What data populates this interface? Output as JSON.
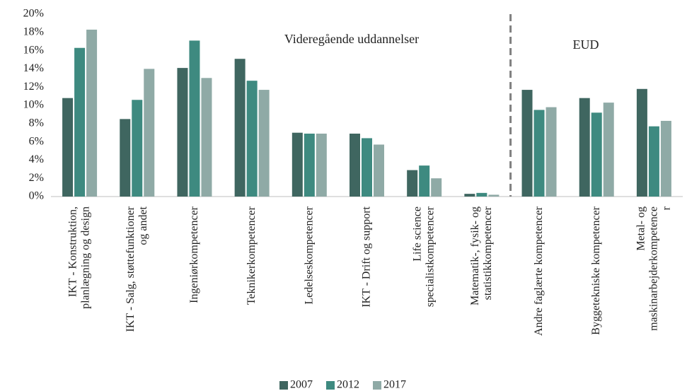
{
  "chart_data": {
    "type": "bar",
    "categories": [
      "IKT - Konstruktion,\nplanlægning og design",
      "IKT - Salg, støttefunktioner\nog andet",
      "Ingeniørkompetencer",
      "Teknikerkompetencer",
      "Ledelseskompetencer",
      "IKT - Drift og support",
      "Life science\nspecialistkompetencer",
      "Matematik-, fysik- og\nstatistikkompetencer",
      "Andre faglærte kompetencer",
      "Byggetekniske kompetencer",
      "Metal- og\nmaskinarbejderkompetence\nr"
    ],
    "series": [
      {
        "name": "2007",
        "color": "#3f6660",
        "values": [
          10.8,
          8.5,
          14.1,
          15.1,
          7.0,
          6.9,
          2.9,
          0.3,
          11.7,
          10.8,
          11.8
        ]
      },
      {
        "name": "2012",
        "color": "#3e8a80",
        "values": [
          16.3,
          10.6,
          17.1,
          12.7,
          6.9,
          6.4,
          3.4,
          0.4,
          9.5,
          9.2,
          7.7
        ]
      },
      {
        "name": "2017",
        "color": "#8faaa6",
        "values": [
          18.3,
          14.0,
          13.0,
          11.7,
          6.9,
          5.7,
          2.0,
          0.2,
          9.8,
          10.3,
          8.3
        ]
      }
    ],
    "ylim": [
      0,
      20
    ],
    "yticks": [
      {
        "value": 0,
        "label": "0%"
      },
      {
        "value": 2,
        "label": "2%"
      },
      {
        "value": 4,
        "label": "4%"
      },
      {
        "value": 6,
        "label": "6%"
      },
      {
        "value": 8,
        "label": "8%"
      },
      {
        "value": 10,
        "label": "10%"
      },
      {
        "value": 12,
        "label": "12%"
      },
      {
        "value": 14,
        "label": "14%"
      },
      {
        "value": 16,
        "label": "16%"
      },
      {
        "value": 18,
        "label": "18%"
      },
      {
        "value": 20,
        "label": "20%"
      }
    ],
    "grid": false,
    "legend": "bottom",
    "annotations": [
      "Videregående uddannelser",
      "EUD"
    ]
  }
}
